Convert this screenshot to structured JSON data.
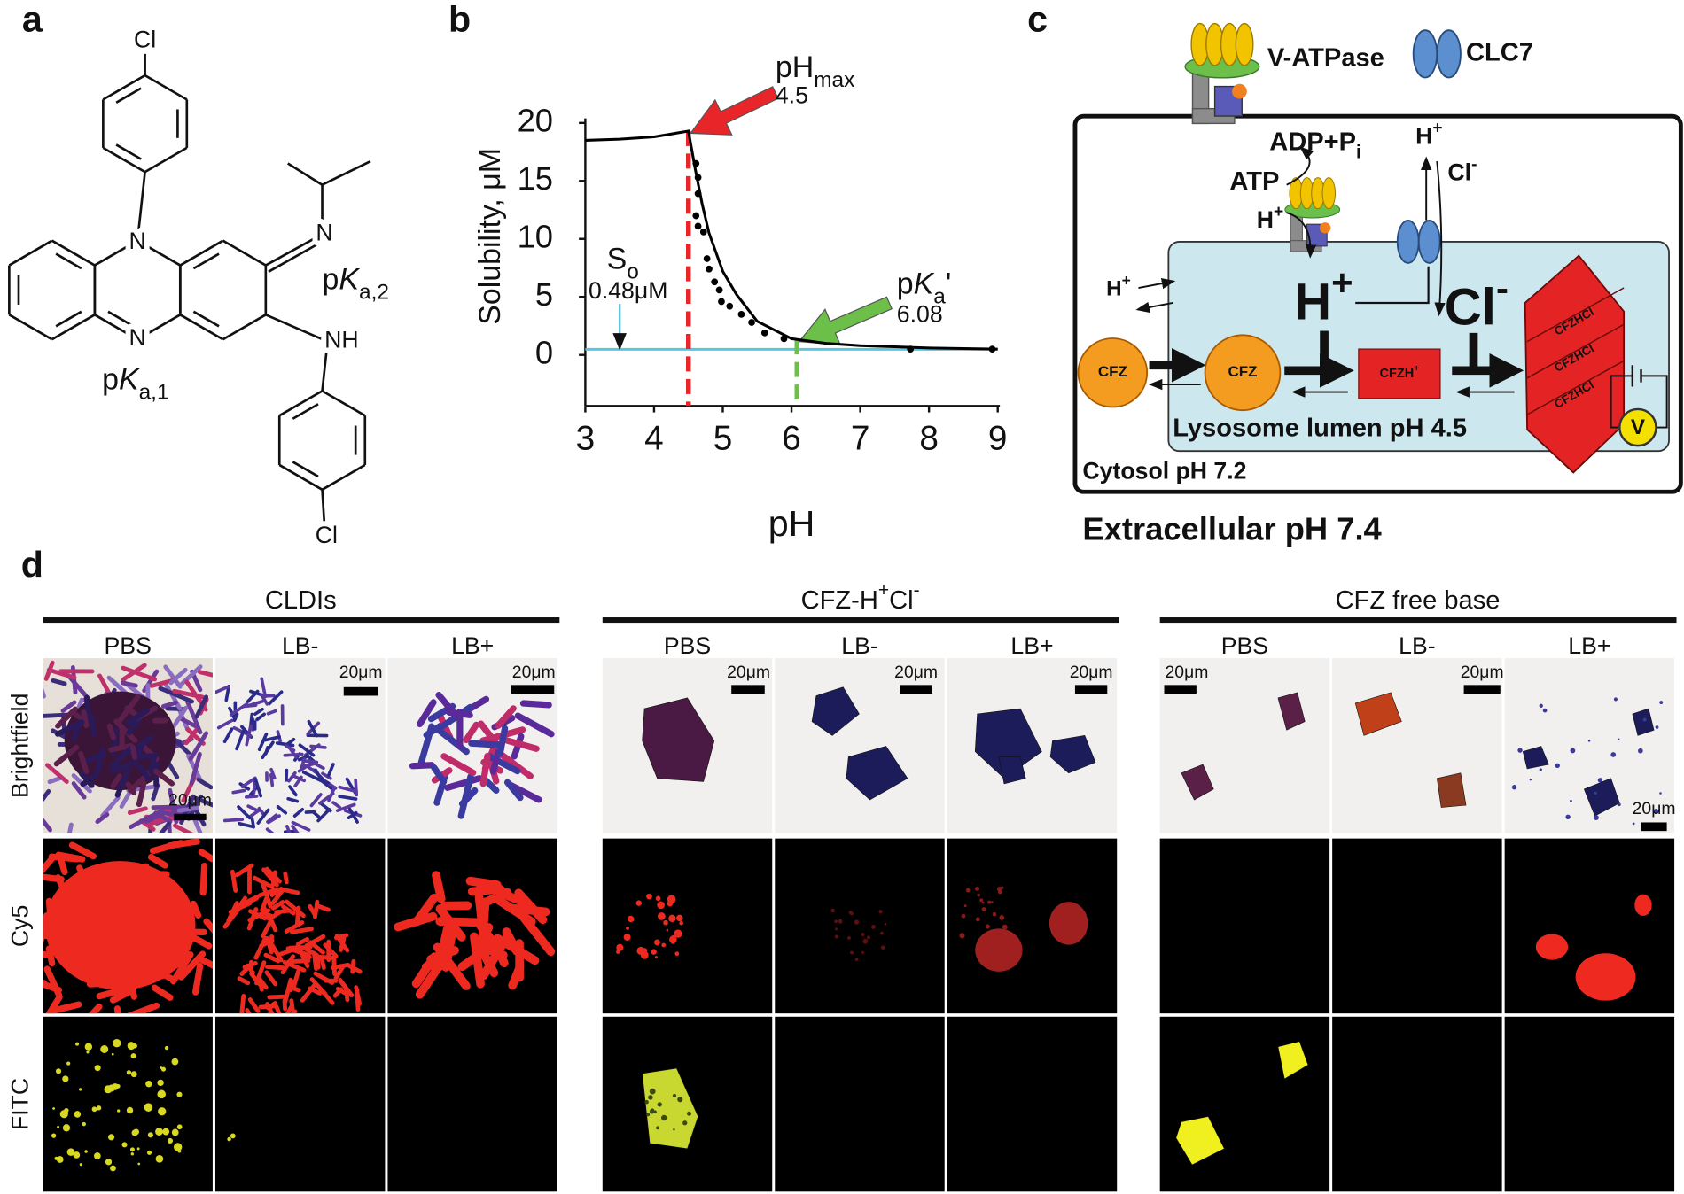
{
  "panel_labels": [
    "a",
    "b",
    "c",
    "d"
  ],
  "structure": {
    "atoms": [
      "Cl",
      "N",
      "N",
      "N",
      "NH",
      "Cl"
    ],
    "pka1": [
      {
        "t": "p"
      },
      {
        "t": "K",
        "s": "i"
      },
      {
        "t": "a,1",
        "s": "sub"
      }
    ],
    "pka2": [
      {
        "t": "p"
      },
      {
        "t": "K",
        "s": "i"
      },
      {
        "t": "a,2",
        "s": "sub"
      }
    ]
  },
  "chart_data": {
    "type": "scatter",
    "xlabel": "pH",
    "ylabel": "Solubility, μM",
    "xlim": [
      3,
      9
    ],
    "ylim": [
      -4.4,
      20.4
    ],
    "xticks": [
      3,
      4,
      5,
      6,
      7,
      8,
      9
    ],
    "yticks": [
      0,
      5,
      10,
      15,
      20
    ],
    "grid": false,
    "series": [
      {
        "type": "scatter",
        "color": "#000000",
        "x": [
          4.61,
          4.64,
          4.64,
          4.61,
          4.64,
          4.72,
          4.77,
          4.8,
          4.88,
          4.95,
          4.98,
          5.1,
          5.27,
          5.42,
          5.61,
          5.89,
          7.73,
          8.92
        ],
        "values": [
          16.5,
          15.3,
          13.9,
          12.0,
          11.1,
          10.6,
          8.3,
          7.4,
          6.3,
          5.6,
          4.6,
          4.2,
          3.5,
          2.8,
          1.9,
          1.4,
          0.5,
          0.5
        ]
      },
      {
        "type": "line",
        "color": "#000000",
        "x": [
          3,
          3.5,
          4,
          4.5,
          4.6,
          4.7,
          4.8,
          5.0,
          5.2,
          5.5,
          6.0,
          6.5,
          7.0,
          8.0,
          9.0
        ],
        "values": [
          18.5,
          18.6,
          18.8,
          19.3,
          16.0,
          13.0,
          10.5,
          7.2,
          5.2,
          2.9,
          1.4,
          1.0,
          0.8,
          0.6,
          0.5
        ]
      }
    ],
    "reference_lines": [
      {
        "axis": "y",
        "value": 0.48,
        "color": "#5bc4e0",
        "dashed": false,
        "label": [
          {
            "t": "S"
          },
          {
            "t": "o",
            "s": "sub"
          }
        ],
        "value_label": "0.48μM"
      },
      {
        "axis": "x",
        "value": 4.5,
        "color": "#e8262a",
        "dashed": true,
        "label": [
          {
            "t": "pH"
          },
          {
            "t": "max",
            "s": "sub"
          }
        ],
        "value_label": "4.5"
      },
      {
        "axis": "x",
        "value": 6.08,
        "color": "#6cc04a",
        "dashed": true,
        "label": [
          {
            "t": "p"
          },
          {
            "t": "K",
            "s": "i"
          },
          {
            "t": "a",
            "s": "sub"
          },
          {
            "t": "'"
          }
        ],
        "value_label": "6.08"
      }
    ]
  },
  "diagram": {
    "legend": [
      "V-ATPase",
      "CLC7"
    ],
    "adp": [
      {
        "t": "ADP+P"
      },
      {
        "t": "i",
        "s": "sub"
      }
    ],
    "atp": "ATP",
    "h_pump": [
      {
        "t": "H"
      },
      {
        "t": "+",
        "s": "sup"
      }
    ],
    "h_out": [
      {
        "t": "H"
      },
      {
        "t": "+",
        "s": "sup"
      }
    ],
    "cl_out": [
      {
        "t": "Cl"
      },
      {
        "t": "-",
        "s": "sup"
      }
    ],
    "h_leak": [
      {
        "t": "H"
      },
      {
        "t": "+",
        "s": "sup"
      }
    ],
    "h_big": [
      {
        "t": "H"
      },
      {
        "t": "+",
        "s": "sup"
      }
    ],
    "cl_big": [
      {
        "t": "Cl"
      },
      {
        "t": "-",
        "s": "sup"
      }
    ],
    "cfz": [
      "CFZ",
      "CFZ"
    ],
    "cfzh": [
      {
        "t": "CFZH"
      },
      {
        "t": "+",
        "s": "sup"
      }
    ],
    "cfzhcl": [
      "CFZHCl",
      "CFZHCl",
      "CFZHCl"
    ],
    "voltmeter": "V",
    "lumen": "Lysosome lumen pH 4.5",
    "cytosol": "Cytosol pH 7.2",
    "extracellular": "Extracellular pH 7.4"
  },
  "micrographs": {
    "rows": [
      "Brightfield",
      "Cy5",
      "FITC"
    ],
    "groups": [
      {
        "title": [
          {
            "t": "CLDIs"
          }
        ],
        "columns": [
          "PBS",
          "LB-",
          "LB+"
        ],
        "scale_bars": [
          "20μm",
          "20μm",
          "20μm"
        ]
      },
      {
        "title": [
          {
            "t": "CFZ-H"
          },
          {
            "t": "+",
            "s": "sup"
          },
          {
            "t": "Cl"
          },
          {
            "t": "-",
            "s": "sup"
          }
        ],
        "columns": [
          "PBS",
          "LB-",
          "LB+"
        ],
        "scale_bars": [
          "20μm",
          "20μm",
          "20μm"
        ]
      },
      {
        "title": [
          {
            "t": "CFZ free base"
          }
        ],
        "columns": [
          "PBS",
          "LB-",
          "LB+"
        ],
        "scale_bars": [
          "20μm",
          "20μm",
          "20μm"
        ]
      }
    ]
  }
}
